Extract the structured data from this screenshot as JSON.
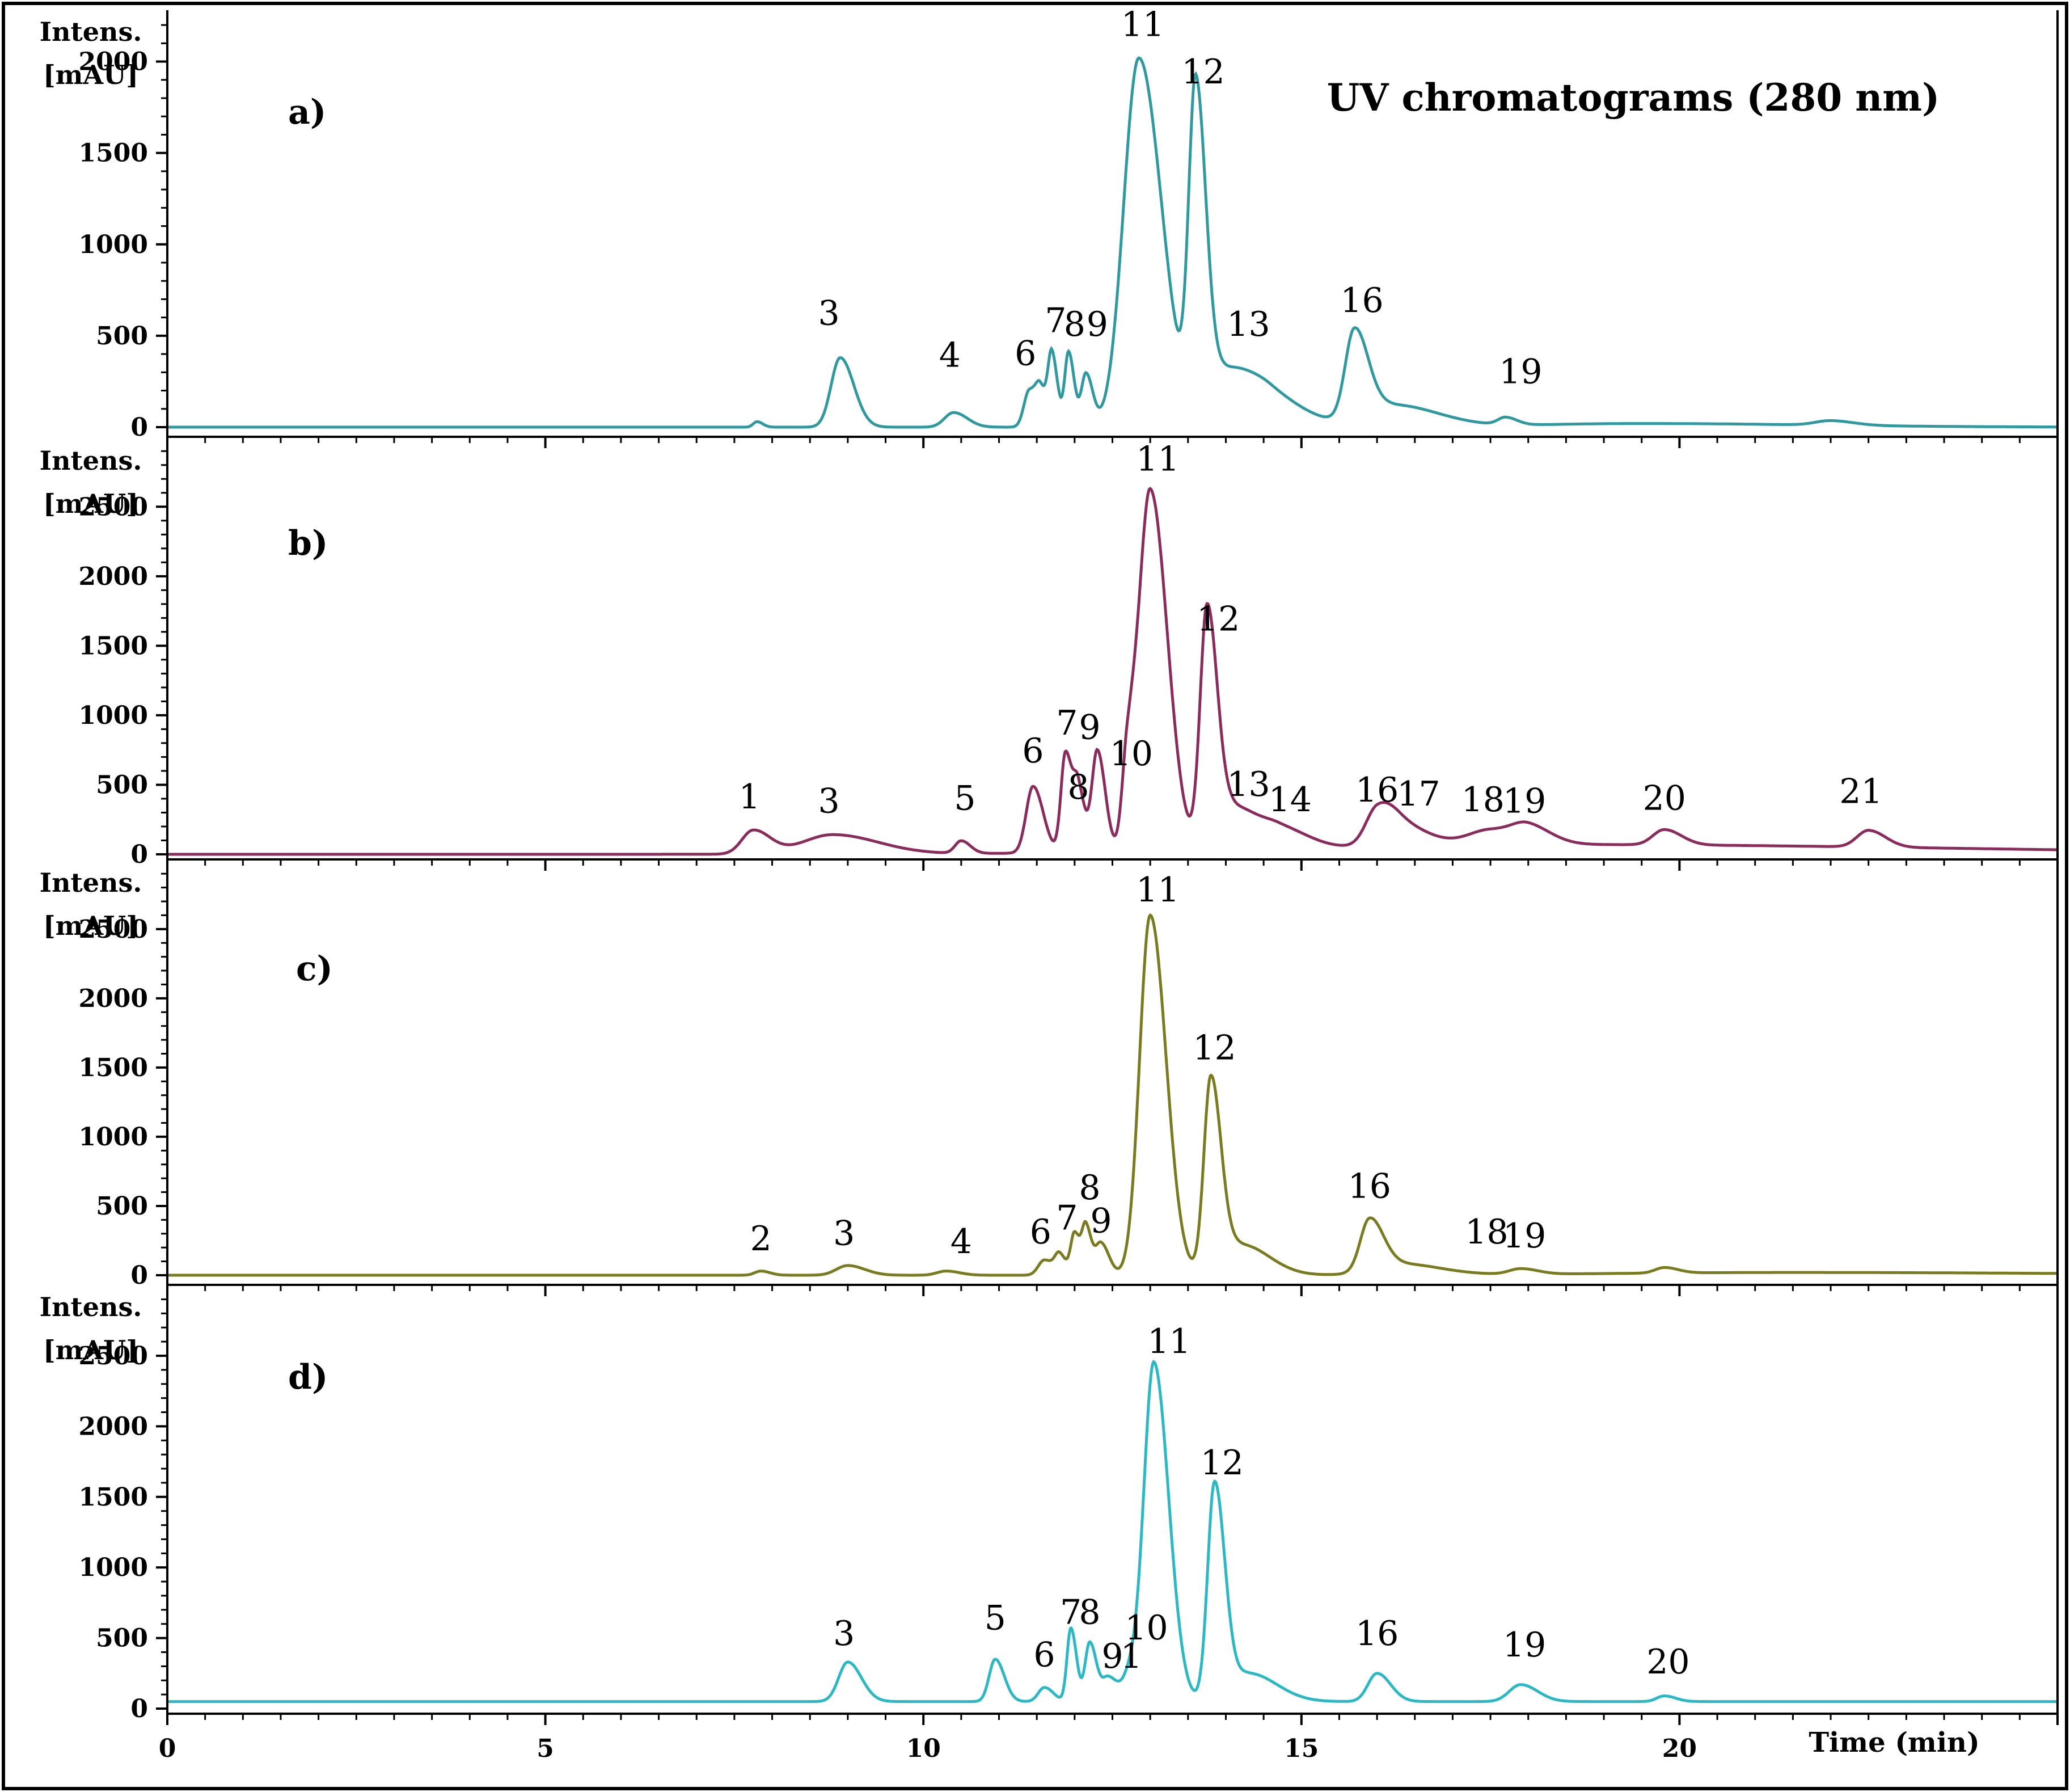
{
  "chart_data": [
    {
      "type": "line",
      "panel_label": "a)",
      "title": "UV chromatograms (280 nm)",
      "ylabel_line1": "Intens.",
      "ylabel_line2": "[mAU]",
      "xlim": [
        0,
        25
      ],
      "ylim": [
        -20,
        2250
      ],
      "yticks": [
        0,
        500,
        1000,
        1500,
        2000
      ],
      "ytick_labels": [
        "0",
        "500",
        "1000",
        "1500",
        "2000"
      ],
      "color": "#2e9aa0",
      "baseline": 0,
      "peaks": [
        {
          "x": 7.8,
          "y": 30,
          "w": 0.05
        },
        {
          "x": 8.9,
          "y": 380,
          "w": 0.12
        },
        {
          "x": 10.4,
          "y": 80,
          "w": 0.12
        },
        {
          "x": 11.4,
          "y": 200,
          "w": 0.07
        },
        {
          "x": 11.55,
          "y": 170,
          "w": 0.06
        },
        {
          "x": 11.7,
          "y": 380,
          "w": 0.05
        },
        {
          "x": 11.92,
          "y": 410,
          "w": 0.05
        },
        {
          "x": 12.15,
          "y": 290,
          "w": 0.06
        },
        {
          "x": 12.85,
          "y": 2020,
          "w": 0.2
        },
        {
          "x": 13.6,
          "y": 1760,
          "w": 0.09
        },
        {
          "x": 14.0,
          "y": 300,
          "w": 0.25
        },
        {
          "x": 14.6,
          "y": 150,
          "w": 0.3
        },
        {
          "x": 15.7,
          "y": 480,
          "w": 0.12
        },
        {
          "x": 16.2,
          "y": 120,
          "w": 0.4
        },
        {
          "x": 17.7,
          "y": 40,
          "w": 0.1
        },
        {
          "x": 19.5,
          "y": 20,
          "w": 1.5
        },
        {
          "x": 22.0,
          "y": 25,
          "w": 0.2
        }
      ],
      "peak_labels": [
        {
          "text": "3",
          "x": 8.75,
          "y": 560
        },
        {
          "text": "4",
          "x": 10.35,
          "y": 330
        },
        {
          "text": "6",
          "x": 11.35,
          "y": 340
        },
        {
          "text": "7",
          "x": 11.75,
          "y": 520
        },
        {
          "text": "8",
          "x": 12.0,
          "y": 500
        },
        {
          "text": "9",
          "x": 12.3,
          "y": 500
        },
        {
          "text": "11",
          "x": 12.9,
          "y": 2140
        },
        {
          "text": "12",
          "x": 13.7,
          "y": 1880
        },
        {
          "text": "13",
          "x": 14.3,
          "y": 500
        },
        {
          "text": "16",
          "x": 15.8,
          "y": 630
        },
        {
          "text": "19",
          "x": 17.9,
          "y": 240
        }
      ]
    },
    {
      "type": "line",
      "panel_label": "b)",
      "ylabel_line1": "Intens.",
      "ylabel_line2": "[mAU]",
      "xlim": [
        0,
        25
      ],
      "ylim": [
        -20,
        2950
      ],
      "yticks": [
        0,
        500,
        1000,
        1500,
        2000,
        2500
      ],
      "ytick_labels": [
        "0",
        "500",
        "1000",
        "1500",
        "2000",
        "2500"
      ],
      "color": "#8b2b5c",
      "baseline": 0,
      "peaks": [
        {
          "x": 7.75,
          "y": 170,
          "w": 0.15
        },
        {
          "x": 8.8,
          "y": 140,
          "w": 0.4
        },
        {
          "x": 10.5,
          "y": 90,
          "w": 0.08
        },
        {
          "x": 11.45,
          "y": 480,
          "w": 0.09
        },
        {
          "x": 11.88,
          "y": 720,
          "w": 0.06
        },
        {
          "x": 12.05,
          "y": 420,
          "w": 0.06
        },
        {
          "x": 12.3,
          "y": 730,
          "w": 0.07
        },
        {
          "x": 12.7,
          "y": 600,
          "w": 0.07
        },
        {
          "x": 13.0,
          "y": 2600,
          "w": 0.15
        },
        {
          "x": 13.75,
          "y": 1700,
          "w": 0.09
        },
        {
          "x": 14.1,
          "y": 300,
          "w": 0.2
        },
        {
          "x": 14.7,
          "y": 150,
          "w": 0.25
        },
        {
          "x": 16.0,
          "y": 230,
          "w": 0.15
        },
        {
          "x": 16.3,
          "y": 150,
          "w": 0.25
        },
        {
          "x": 17.5,
          "y": 110,
          "w": 0.3
        },
        {
          "x": 18.0,
          "y": 100,
          "w": 0.2
        },
        {
          "x": 19.8,
          "y": 110,
          "w": 0.15
        },
        {
          "x": 22.5,
          "y": 120,
          "w": 0.15
        },
        {
          "x": 18.5,
          "y": 70,
          "w": 3.5
        }
      ],
      "peak_labels": [
        {
          "text": "1",
          "x": 7.7,
          "y": 330
        },
        {
          "text": "3",
          "x": 8.75,
          "y": 300
        },
        {
          "text": "5",
          "x": 10.55,
          "y": 320
        },
        {
          "text": "6",
          "x": 11.45,
          "y": 660
        },
        {
          "text": "7",
          "x": 11.9,
          "y": 860
        },
        {
          "text": "9",
          "x": 12.2,
          "y": 830
        },
        {
          "text": "8",
          "x": 12.05,
          "y": 400
        },
        {
          "text": "10",
          "x": 12.75,
          "y": 640
        },
        {
          "text": "11",
          "x": 13.1,
          "y": 2760
        },
        {
          "text": "12",
          "x": 13.9,
          "y": 1610
        },
        {
          "text": "13",
          "x": 14.3,
          "y": 420
        },
        {
          "text": "14",
          "x": 14.85,
          "y": 310
        },
        {
          "text": "16",
          "x": 16.0,
          "y": 380
        },
        {
          "text": "17",
          "x": 16.55,
          "y": 350
        },
        {
          "text": "18",
          "x": 17.4,
          "y": 310
        },
        {
          "text": "19",
          "x": 17.95,
          "y": 300
        },
        {
          "text": "20",
          "x": 19.8,
          "y": 320
        },
        {
          "text": "21",
          "x": 22.4,
          "y": 370
        }
      ]
    },
    {
      "type": "line",
      "panel_label": "c)",
      "ylabel_line1": "Intens.",
      "ylabel_line2": "[mAU]",
      "xlim": [
        0,
        25
      ],
      "ylim": [
        -50,
        2950
      ],
      "yticks": [
        0,
        500,
        1000,
        1500,
        2000,
        2500
      ],
      "ytick_labels": [
        "0",
        "500",
        "1000",
        "1500",
        "2000",
        "2500"
      ],
      "color": "#7a7a1e",
      "baseline": 0,
      "peaks": [
        {
          "x": 7.85,
          "y": 30,
          "w": 0.08
        },
        {
          "x": 9.0,
          "y": 70,
          "w": 0.15
        },
        {
          "x": 10.3,
          "y": 30,
          "w": 0.12
        },
        {
          "x": 11.6,
          "y": 110,
          "w": 0.08
        },
        {
          "x": 11.8,
          "y": 140,
          "w": 0.06
        },
        {
          "x": 12.0,
          "y": 300,
          "w": 0.05
        },
        {
          "x": 12.15,
          "y": 340,
          "w": 0.05
        },
        {
          "x": 12.35,
          "y": 230,
          "w": 0.07
        },
        {
          "x": 13.0,
          "y": 2600,
          "w": 0.14
        },
        {
          "x": 13.8,
          "y": 1380,
          "w": 0.09
        },
        {
          "x": 14.2,
          "y": 220,
          "w": 0.25
        },
        {
          "x": 15.9,
          "y": 370,
          "w": 0.12
        },
        {
          "x": 16.3,
          "y": 80,
          "w": 0.35
        },
        {
          "x": 17.9,
          "y": 40,
          "w": 0.15
        },
        {
          "x": 19.8,
          "y": 40,
          "w": 0.12
        },
        {
          "x": 21.5,
          "y": 20,
          "w": 2.5
        }
      ],
      "peak_labels": [
        {
          "text": "2",
          "x": 7.85,
          "y": 180
        },
        {
          "text": "3",
          "x": 8.95,
          "y": 220
        },
        {
          "text": "4",
          "x": 10.5,
          "y": 160
        },
        {
          "text": "6",
          "x": 11.55,
          "y": 230
        },
        {
          "text": "7",
          "x": 11.9,
          "y": 330
        },
        {
          "text": "8",
          "x": 12.2,
          "y": 550
        },
        {
          "text": "9",
          "x": 12.35,
          "y": 310
        },
        {
          "text": "11",
          "x": 13.1,
          "y": 2700
        },
        {
          "text": "12",
          "x": 13.85,
          "y": 1560
        },
        {
          "text": "16",
          "x": 15.9,
          "y": 560
        },
        {
          "text": "18",
          "x": 17.45,
          "y": 230
        },
        {
          "text": "19",
          "x": 17.95,
          "y": 200
        }
      ]
    },
    {
      "type": "line",
      "panel_label": "d)",
      "ylabel_line1": "Intens.",
      "ylabel_line2": "[mAU]",
      "xlabel": "Time (min)",
      "xlim": [
        0,
        25
      ],
      "ylim": [
        -20,
        2950
      ],
      "yticks": [
        0,
        500,
        1000,
        1500,
        2000,
        2500
      ],
      "ytick_labels": [
        "0",
        "500",
        "1000",
        "1500",
        "2000",
        "2500"
      ],
      "xticks": [
        0,
        5,
        10,
        15,
        20
      ],
      "xtick_labels": [
        "0",
        "5",
        "10",
        "15",
        "20"
      ],
      "color": "#2ab8c4",
      "baseline": 50,
      "peaks": [
        {
          "x": 9.0,
          "y": 280,
          "w": 0.12
        },
        {
          "x": 10.95,
          "y": 300,
          "w": 0.08
        },
        {
          "x": 11.6,
          "y": 100,
          "w": 0.08
        },
        {
          "x": 11.95,
          "y": 520,
          "w": 0.05
        },
        {
          "x": 12.2,
          "y": 420,
          "w": 0.06
        },
        {
          "x": 12.45,
          "y": 170,
          "w": 0.08
        },
        {
          "x": 12.75,
          "y": 200,
          "w": 0.1
        },
        {
          "x": 13.05,
          "y": 2380,
          "w": 0.13
        },
        {
          "x": 13.85,
          "y": 1520,
          "w": 0.09
        },
        {
          "x": 14.3,
          "y": 200,
          "w": 0.25
        },
        {
          "x": 16.0,
          "y": 200,
          "w": 0.12
        },
        {
          "x": 17.9,
          "y": 120,
          "w": 0.15
        },
        {
          "x": 19.8,
          "y": 40,
          "w": 0.1
        }
      ],
      "peak_labels": [
        {
          "text": "3",
          "x": 8.95,
          "y": 450
        },
        {
          "text": "5",
          "x": 10.95,
          "y": 560
        },
        {
          "text": "6",
          "x": 11.6,
          "y": 300
        },
        {
          "text": "7",
          "x": 11.95,
          "y": 600
        },
        {
          "text": "8",
          "x": 12.2,
          "y": 600
        },
        {
          "text": "9",
          "x": 12.5,
          "y": 290
        },
        {
          "text": "1",
          "x": 12.75,
          "y": 290
        },
        {
          "text": "10",
          "x": 12.95,
          "y": 490
        },
        {
          "text": "11",
          "x": 13.25,
          "y": 2520
        },
        {
          "text": "12",
          "x": 13.95,
          "y": 1660
        },
        {
          "text": "16",
          "x": 16.0,
          "y": 450
        },
        {
          "text": "19",
          "x": 17.95,
          "y": 370
        },
        {
          "text": "20",
          "x": 19.85,
          "y": 250
        }
      ]
    }
  ]
}
